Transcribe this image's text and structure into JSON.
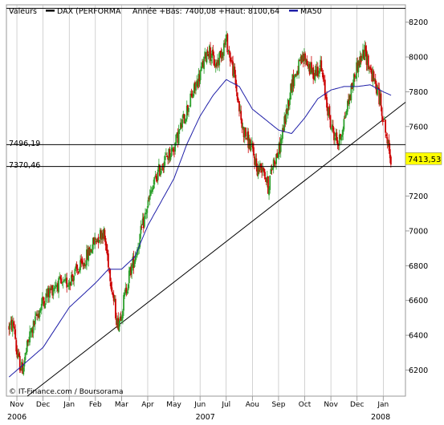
{
  "chart_data": {
    "type": "candlestick",
    "title": "",
    "legend": {
      "label_values": "Valeurs",
      "label_series": "DAX (PERFORMA",
      "label_stats": "Année +Bas: 7400,08 +Haut: 8100,64",
      "label_ma": "MA50",
      "placement": "top-left"
    },
    "yaxis": {
      "min": 6050,
      "max": 8300,
      "ticks": [
        6200,
        6400,
        6600,
        6800,
        7000,
        7200,
        7400,
        7600,
        7800,
        8000,
        8200
      ],
      "position": "right"
    },
    "xaxis": {
      "months": [
        {
          "label": "Nov",
          "x": 0
        },
        {
          "label": "Dec",
          "x": 1
        },
        {
          "label": "Jan",
          "x": 2
        },
        {
          "label": "Feb",
          "x": 3
        },
        {
          "label": "Mar",
          "x": 4
        },
        {
          "label": "Apr",
          "x": 5
        },
        {
          "label": "May",
          "x": 6
        },
        {
          "label": "Jun",
          "x": 7
        },
        {
          "label": "Jul",
          "x": 8
        },
        {
          "label": "Aou",
          "x": 9
        },
        {
          "label": "Sep",
          "x": 10
        },
        {
          "label": "Oct",
          "x": 11
        },
        {
          "label": "Nov",
          "x": 12
        },
        {
          "label": "Dec",
          "x": 13
        },
        {
          "label": "Jan",
          "x": 14
        }
      ],
      "years": [
        {
          "label": "2006",
          "x": 0
        },
        {
          "label": "2007",
          "x": 7.2
        },
        {
          "label": "2008",
          "x": 13.9
        }
      ],
      "range": [
        -0.4,
        14.85
      ]
    },
    "grid": "vertical-monthly",
    "hlines": [
      {
        "label": "7496,19",
        "value": 7496.19
      },
      {
        "label": "7370,46",
        "value": 7370.46
      },
      {
        "label": "",
        "value": 8280
      }
    ],
    "last_value": {
      "label": "7413,53",
      "value": 7413.53
    },
    "trendline": {
      "x1": 0.4,
      "y1": 6050,
      "x2": 14.85,
      "y2": 7740
    },
    "ma50_anchors": [
      [
        -0.3,
        6160
      ],
      [
        1,
        6330
      ],
      [
        2,
        6560
      ],
      [
        3,
        6700
      ],
      [
        3.5,
        6780
      ],
      [
        4,
        6780
      ],
      [
        4.5,
        6850
      ],
      [
        5,
        7030
      ],
      [
        6,
        7300
      ],
      [
        6.5,
        7500
      ],
      [
        7,
        7660
      ],
      [
        7.5,
        7780
      ],
      [
        8,
        7870
      ],
      [
        8.5,
        7830
      ],
      [
        9,
        7700
      ],
      [
        9.5,
        7640
      ],
      [
        10,
        7580
      ],
      [
        10.5,
        7560
      ],
      [
        11,
        7650
      ],
      [
        11.5,
        7760
      ],
      [
        12,
        7810
      ],
      [
        12.5,
        7830
      ],
      [
        13,
        7830
      ],
      [
        13.5,
        7840
      ],
      [
        14,
        7800
      ],
      [
        14.3,
        7780
      ]
    ],
    "price_anchors": [
      [
        -0.3,
        6450
      ],
      [
        -0.1,
        6460
      ],
      [
        0,
        6280
      ],
      [
        0.2,
        6200
      ],
      [
        0.5,
        6400
      ],
      [
        1,
        6600
      ],
      [
        1.5,
        6700
      ],
      [
        1.8,
        6680
      ],
      [
        2,
        6720
      ],
      [
        2.5,
        6800
      ],
      [
        3,
        6950
      ],
      [
        3.3,
        7000
      ],
      [
        3.5,
        6820
      ],
      [
        3.7,
        6600
      ],
      [
        3.85,
        6460
      ],
      [
        4,
        6540
      ],
      [
        4.3,
        6750
      ],
      [
        4.6,
        6900
      ],
      [
        5,
        7150
      ],
      [
        5.3,
        7300
      ],
      [
        5.6,
        7400
      ],
      [
        6,
        7480
      ],
      [
        6.5,
        7700
      ],
      [
        7,
        7900
      ],
      [
        7.3,
        8050
      ],
      [
        7.6,
        7950
      ],
      [
        8,
        8100
      ],
      [
        8.3,
        7900
      ],
      [
        8.6,
        7600
      ],
      [
        9,
        7460
      ],
      [
        9.2,
        7350
      ],
      [
        9.4,
        7380
      ],
      [
        9.6,
        7250
      ],
      [
        9.8,
        7400
      ],
      [
        10,
        7450
      ],
      [
        10.3,
        7680
      ],
      [
        10.5,
        7850
      ],
      [
        10.8,
        7950
      ],
      [
        11,
        8000
      ],
      [
        11.3,
        7900
      ],
      [
        11.6,
        7950
      ],
      [
        12,
        7600
      ],
      [
        12.3,
        7500
      ],
      [
        12.6,
        7700
      ],
      [
        13,
        7950
      ],
      [
        13.3,
        8030
      ],
      [
        13.6,
        7880
      ],
      [
        13.8,
        7800
      ],
      [
        14,
        7660
      ],
      [
        14.2,
        7470
      ],
      [
        14.3,
        7413.53
      ]
    ],
    "colors": {
      "up": "#2ca02c",
      "down": "#cc0000",
      "ma": "#1f1fa8",
      "line": "#000000",
      "grid": "#b4b4b4"
    }
  },
  "watermark": "© IT-Finance.com / Boursorama",
  "value_tag_bg": "#ffff00"
}
